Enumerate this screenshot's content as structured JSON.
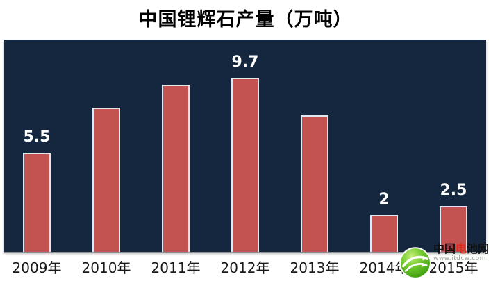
{
  "title": "中国锂辉石产量（万吨）",
  "colors": {
    "page_bg": "#ffffff",
    "plot_bg": "#14273f",
    "bar_fill": "#c25350",
    "bar_border": "#e2e8ef",
    "data_label": "#ffffff",
    "axis_label": "#1a1a1a",
    "title_color": "#000000",
    "logo_green": "#5cb821",
    "logo_accent": "#e02b1d"
  },
  "chart_data": {
    "type": "bar",
    "title": "中国锂辉石产量（万吨）",
    "categories": [
      "2009年",
      "2010年",
      "2011年",
      "2012年",
      "2013年",
      "2014年",
      "2015年"
    ],
    "values": [
      5.5,
      8,
      9.3,
      9.7,
      7.6,
      2,
      2.5
    ],
    "data_labels": [
      "5.5",
      null,
      null,
      "9.7",
      null,
      "2",
      "2.5"
    ],
    "xlabel": "",
    "ylabel": "",
    "ylim": [
      0,
      11.9
    ],
    "grid": false,
    "legend": false,
    "plot_background": "#14273f",
    "bar_color": "#c25350"
  },
  "logo": {
    "name": "中国电池网",
    "name_prefix": "中国",
    "name_accent": "电",
    "name_suffix": "池网",
    "url": "www.itdcw.com"
  }
}
